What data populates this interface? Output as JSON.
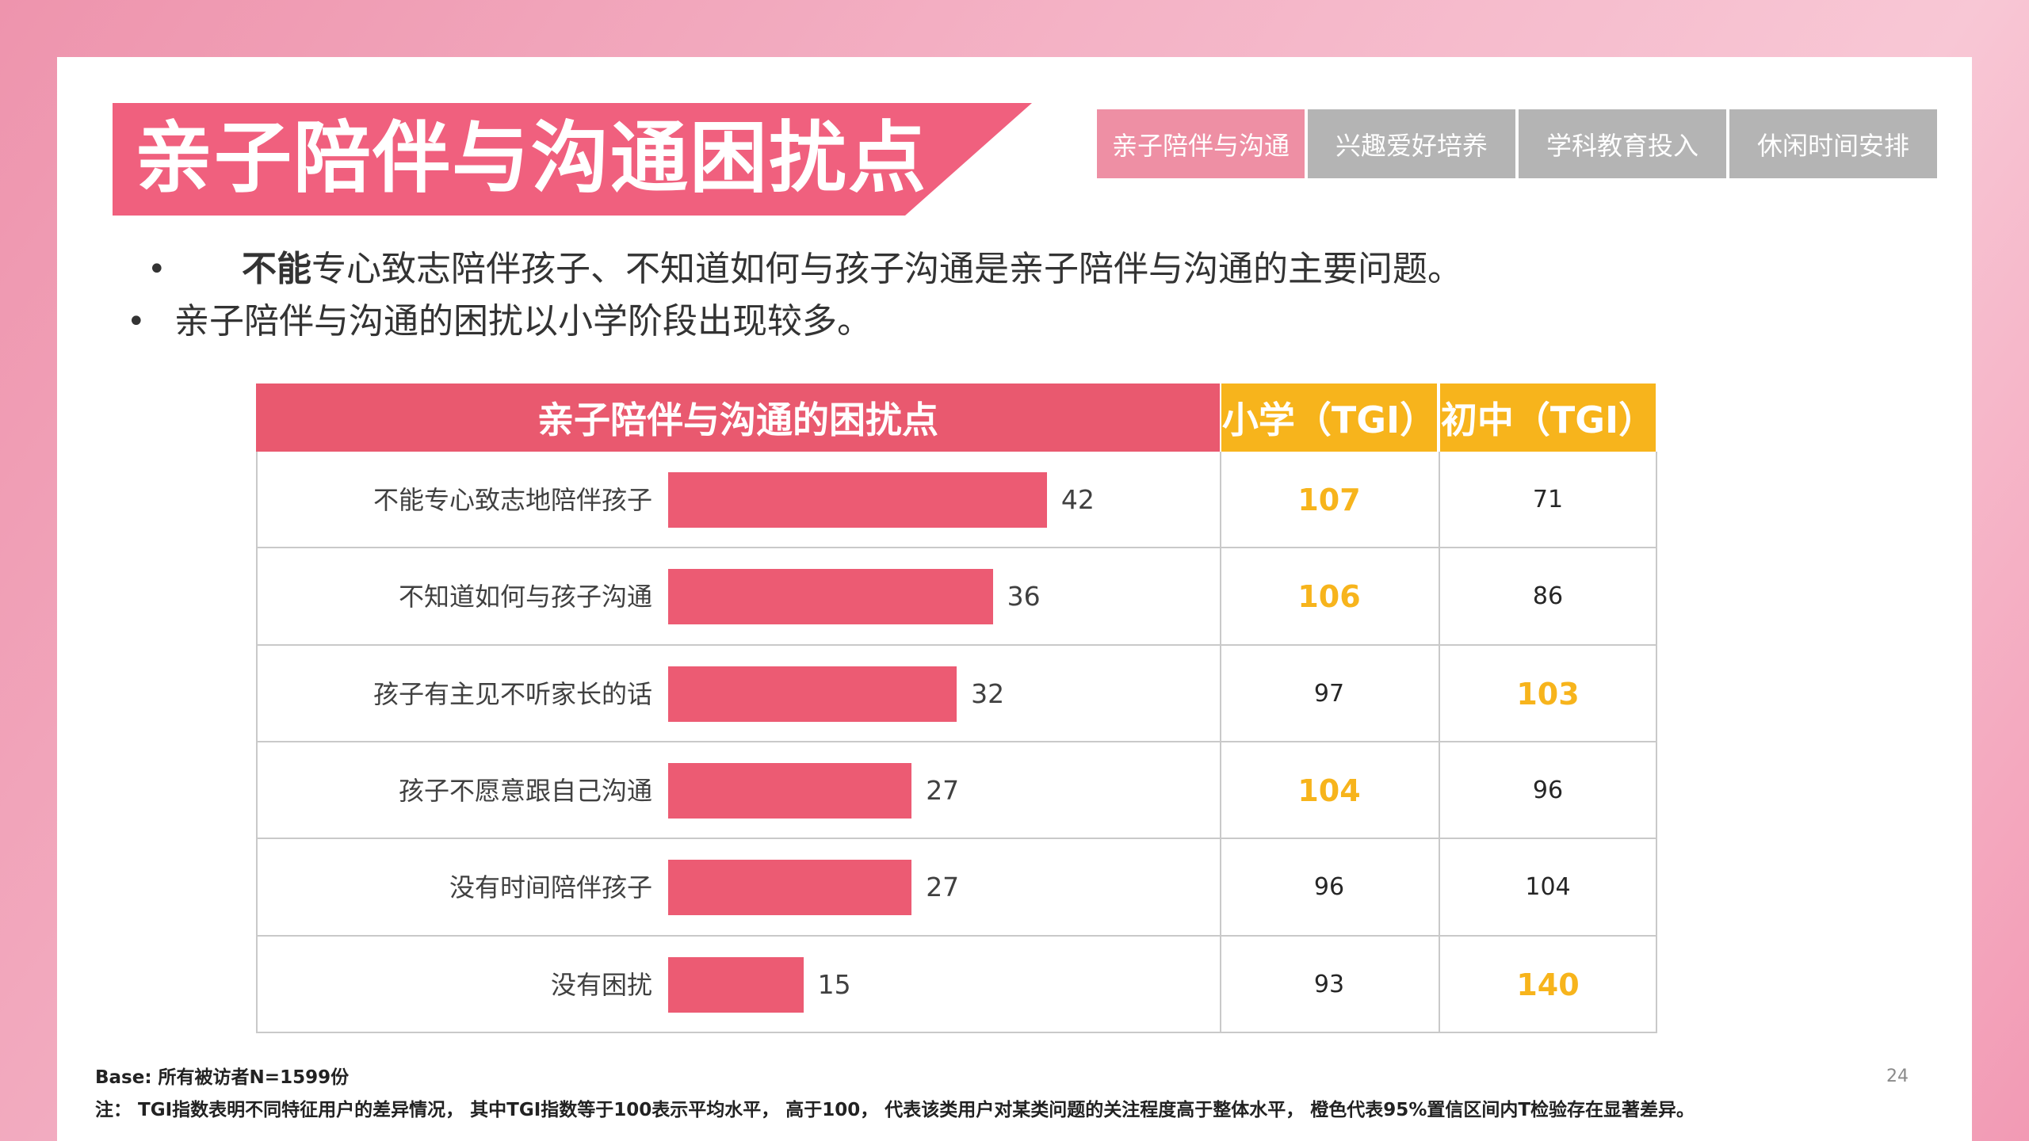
{
  "title": "亲子陪伴与沟通困扰点",
  "tabs": [
    {
      "label": "亲子陪伴与沟通",
      "active": true
    },
    {
      "label": "兴趣爱好培养",
      "active": false
    },
    {
      "label": "学科教育投入",
      "active": false
    },
    {
      "label": "休闲时间安排",
      "active": false
    }
  ],
  "bullets": {
    "line1_bold": "不能",
    "line1_rest": "专心致志陪伴孩子、不知道如何与孩子沟通是亲子陪伴与沟通的主要问题。",
    "line2": "亲子陪伴与沟通的困扰以小学阶段出现较多。"
  },
  "table": {
    "header_main": "亲子陪伴与沟通的困扰点",
    "header_primary": "小学（TGI）",
    "header_middle": "初中（TGI）",
    "highlight_color": "#f7b41c",
    "rows": [
      {
        "label": "不能专心致志地陪伴孩子",
        "value": 42,
        "primary": "107",
        "primary_hl": true,
        "middle": "71",
        "middle_hl": false
      },
      {
        "label": "不知道如何与孩子沟通",
        "value": 36,
        "primary": "106",
        "primary_hl": true,
        "middle": "86",
        "middle_hl": false
      },
      {
        "label": "孩子有主见不听家长的话",
        "value": 32,
        "primary": "97",
        "primary_hl": false,
        "middle": "103",
        "middle_hl": true
      },
      {
        "label": "孩子不愿意跟自己沟通",
        "value": 27,
        "primary": "104",
        "primary_hl": true,
        "middle": "96",
        "middle_hl": false
      },
      {
        "label": "没有时间陪伴孩子",
        "value": 27,
        "primary": "96",
        "primary_hl": false,
        "middle": "104",
        "middle_hl": false
      },
      {
        "label": "没有困扰",
        "value": 15,
        "primary": "93",
        "primary_hl": false,
        "middle": "140",
        "middle_hl": true
      }
    ]
  },
  "chart_data": {
    "type": "bar",
    "orientation": "horizontal",
    "title": "亲子陪伴与沟通的困扰点",
    "categories": [
      "不能专心致志地陪伴孩子",
      "不知道如何与孩子沟通",
      "孩子有主见不听家长的话",
      "孩子不愿意跟自己沟通",
      "没有时间陪伴孩子",
      "没有困扰"
    ],
    "values": [
      42,
      36,
      32,
      27,
      27,
      15
    ],
    "bar_color": "#ec5b73",
    "xlim": [
      0,
      45
    ]
  },
  "footer": {
    "base": "Base:  所有被访者N=1599份",
    "note": "注：  TGI指数表明不同特征用户的差异情况，  其中TGI指数等于100表示平均水平，  高于100，  代表该类用户对某类问题的关注程度高于整体水平，  橙色代表95%置信区间内T检验存在显著差异。",
    "page_number": "24"
  }
}
